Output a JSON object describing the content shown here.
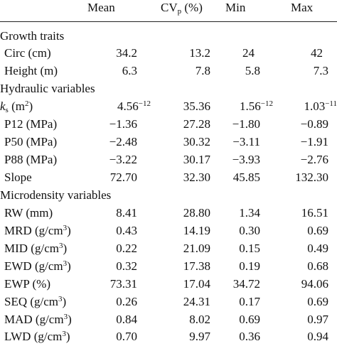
{
  "header": {
    "mean": "Mean",
    "cv": "CV",
    "cv_sub": "p",
    "cv_unit": " (%)",
    "min": "Min",
    "max": "Max"
  },
  "groups": {
    "growth": "Growth traits",
    "hydraulic": "Hydraulic variables",
    "micro": "Microdensity variables"
  },
  "rows": {
    "circ": {
      "label": "Circ (cm)",
      "mean": "34.2",
      "cv": "13.2",
      "min": "24",
      "max": "42"
    },
    "height": {
      "label": "Height (m)",
      "mean": "6.3",
      "cv": "7.8",
      "min": "5.8",
      "max": "7.3"
    },
    "ks": {
      "sym": "k",
      "sym_sub": "s",
      "unit": " (m",
      "unit_sup": "2",
      "unit_end": ")",
      "mean": "4.56",
      "mean_sup": "−12",
      "cv": "35.36",
      "min": "1.56",
      "min_sup": "−12",
      "max": "1.03",
      "max_sup": "−11"
    },
    "p12": {
      "label": "P12 (MPa)",
      "mean": "−1.36",
      "cv": "27.28",
      "min": "−1.80",
      "max": "−0.89"
    },
    "p50": {
      "label": "P50 (MPa)",
      "mean": "−2.48",
      "cv": "30.32",
      "min": "−3.11",
      "max": "−1.91"
    },
    "p88": {
      "label": "P88 (MPa)",
      "mean": "−3.22",
      "cv": "30.17",
      "min": "−3.93",
      "max": "−2.76"
    },
    "slope": {
      "label": "Slope",
      "mean": "72.70",
      "cv": "32.30",
      "min": "45.85",
      "max": "132.30"
    },
    "rw": {
      "label": "RW (mm)",
      "mean": "8.41",
      "cv": "28.80",
      "min": "1.34",
      "max": "16.51"
    },
    "mrd": {
      "label": "MRD (g/cm",
      "label_sup": "3",
      "label_end": ")",
      "mean": "0.43",
      "cv": "14.19",
      "min": "0.30",
      "max": "0.69"
    },
    "mid": {
      "label": "MID (g/cm",
      "label_sup": "3",
      "label_end": ")",
      "mean": "0.22",
      "cv": "21.09",
      "min": "0.15",
      "max": "0.49"
    },
    "ewd": {
      "label": "EWD (g/cm",
      "label_sup": "3",
      "label_end": ")",
      "mean": "0.32",
      "cv": "17.38",
      "min": "0.19",
      "max": "0.68"
    },
    "ewp": {
      "label": "EWP (%)",
      "mean": "73.31",
      "cv": "17.04",
      "min": "34.72",
      "max": "94.06"
    },
    "seq": {
      "label": "SEQ (g/cm",
      "label_sup": "3",
      "label_end": ")",
      "mean": "0.26",
      "cv": "24.31",
      "min": "0.17",
      "max": "0.69"
    },
    "mad": {
      "label": "MAD (g/cm",
      "label_sup": "3",
      "label_end": ")",
      "mean": "0.84",
      "cv": "8.02",
      "min": "0.69",
      "max": "0.97"
    },
    "lwd": {
      "label": "LWD (g/cm",
      "label_sup": "3",
      "label_end": ")",
      "mean": "0.70",
      "cv": "9.97",
      "min": "0.36",
      "max": "0.94"
    }
  }
}
